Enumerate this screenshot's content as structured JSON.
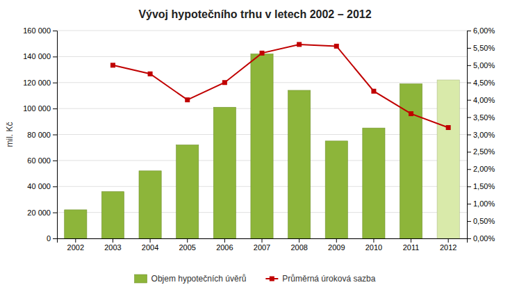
{
  "chart_data": {
    "type": "bar",
    "title": "Vývoj hypotečního trhu v letech 2002 – 2012",
    "categories": [
      "2002",
      "2003",
      "2004",
      "2005",
      "2006",
      "2007",
      "2008",
      "2009",
      "2010",
      "2011",
      "2012"
    ],
    "ylabel": "mil. Kč",
    "series": [
      {
        "name": "Objem hypotečních úvěrů",
        "type": "bar",
        "colors": [
          "#8db53a",
          "#8db53a",
          "#8db53a",
          "#8db53a",
          "#8db53a",
          "#8db53a",
          "#8db53a",
          "#8db53a",
          "#8db53a",
          "#8db53a",
          "#d9eaaa"
        ],
        "values": [
          22000,
          36000,
          52000,
          72000,
          101000,
          142000,
          114000,
          75000,
          85000,
          119000,
          122000
        ]
      },
      {
        "name": "Průměrná úroková sazba",
        "type": "line",
        "axis": "y2",
        "color": "#c00000",
        "marker": "square",
        "values": [
          null,
          5.0,
          4.75,
          4.0,
          4.5,
          5.35,
          5.6,
          5.55,
          4.25,
          3.6,
          3.2
        ]
      }
    ],
    "ylim": [
      0,
      160000
    ],
    "yticks": [
      0,
      {
        "value": 20000,
        "label": "20 000"
      },
      {
        "value": 40000,
        "label": "40 000"
      },
      {
        "value": 60000,
        "label": "60 000"
      },
      {
        "value": 80000,
        "label": "80 000"
      },
      {
        "value": 100000,
        "label": "100 000"
      },
      {
        "value": 120000,
        "label": "120 000"
      },
      {
        "value": 140000,
        "label": "140 000"
      },
      {
        "value": 160000,
        "label": "160 000"
      }
    ],
    "y2lim": [
      0,
      6.0
    ],
    "y2ticks": [
      {
        "value": 0.0,
        "label": "0,00%"
      },
      {
        "value": 0.5,
        "label": "0,50%"
      },
      {
        "value": 1.0,
        "label": "1,00%"
      },
      {
        "value": 1.5,
        "label": "1,50%"
      },
      {
        "value": 2.0,
        "label": "2,00%"
      },
      {
        "value": 2.5,
        "label": "2,50%"
      },
      {
        "value": 3.0,
        "label": "3,00%"
      },
      {
        "value": 3.5,
        "label": "3,50%"
      },
      {
        "value": 4.0,
        "label": "4,00%"
      },
      {
        "value": 4.5,
        "label": "4,50%"
      },
      {
        "value": 5.0,
        "label": "5,00%"
      },
      {
        "value": 5.5,
        "label": "5,50%"
      },
      {
        "value": 6.0,
        "label": "6,00%"
      }
    ],
    "grid": true,
    "legend": "bottom"
  }
}
